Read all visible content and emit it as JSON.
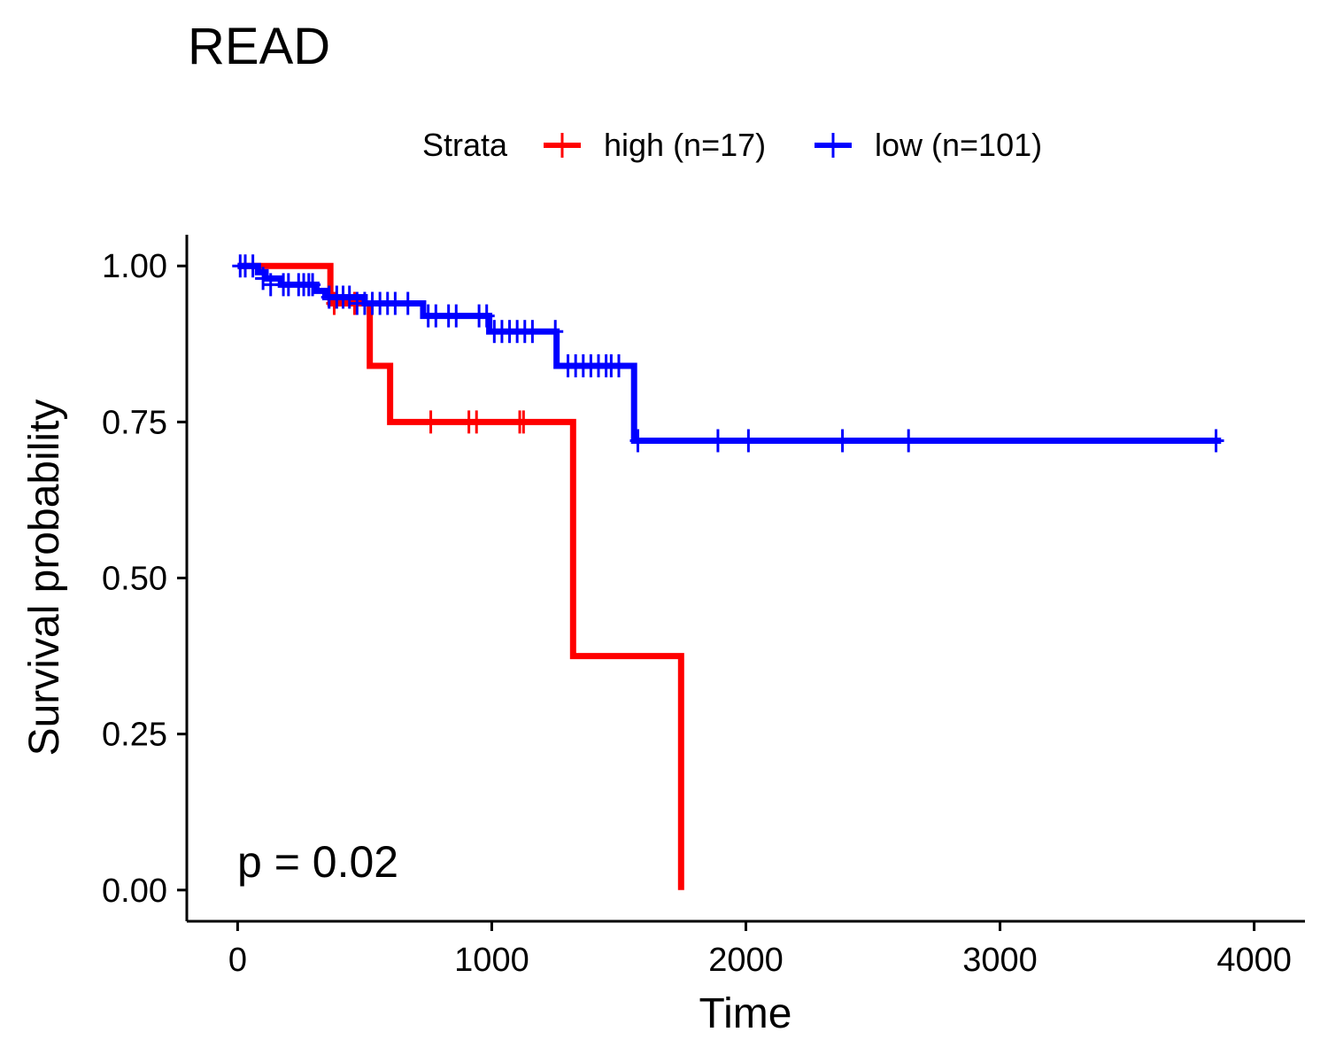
{
  "chart_data": {
    "type": "line",
    "title": "READ",
    "xlabel": "Time",
    "ylabel": "Survival probability",
    "xlim": [
      -200,
      4200
    ],
    "ylim": [
      -0.05,
      1.05
    ],
    "x_ticks": [
      "0",
      "1000",
      "2000",
      "3000",
      "4000"
    ],
    "y_ticks": [
      "0.00",
      "0.25",
      "0.50",
      "0.75",
      "1.00"
    ],
    "grid": false,
    "legend": {
      "title": "Strata",
      "position": "top"
    },
    "annotation": "p = 0.02",
    "series": [
      {
        "name": "high (n=17)",
        "color": "#ff0000",
        "steps": [
          [
            0,
            1.0
          ],
          [
            365,
            0.94
          ],
          [
            520,
            0.84
          ],
          [
            600,
            0.75
          ],
          [
            1320,
            0.375
          ],
          [
            1745,
            0.0
          ]
        ],
        "end_x": 1745,
        "censor": [
          [
            380,
            0.94
          ],
          [
            460,
            0.94
          ],
          [
            760,
            0.75
          ],
          [
            910,
            0.75
          ],
          [
            940,
            0.75
          ],
          [
            1110,
            0.75
          ],
          [
            1125,
            0.75
          ]
        ]
      },
      {
        "name": "low (n=101)",
        "color": "#0000ff",
        "steps": [
          [
            0,
            1.0
          ],
          [
            80,
            0.99
          ],
          [
            110,
            0.98
          ],
          [
            170,
            0.97
          ],
          [
            310,
            0.96
          ],
          [
            345,
            0.95
          ],
          [
            500,
            0.94
          ],
          [
            730,
            0.92
          ],
          [
            990,
            0.895
          ],
          [
            1255,
            0.84
          ],
          [
            1560,
            0.72
          ]
        ],
        "end_x": 3870,
        "censor": [
          [
            10,
            1.0
          ],
          [
            30,
            1.0
          ],
          [
            60,
            1.0
          ],
          [
            100,
            0.98
          ],
          [
            130,
            0.97
          ],
          [
            180,
            0.97
          ],
          [
            200,
            0.97
          ],
          [
            240,
            0.97
          ],
          [
            260,
            0.97
          ],
          [
            280,
            0.97
          ],
          [
            295,
            0.97
          ],
          [
            360,
            0.95
          ],
          [
            390,
            0.95
          ],
          [
            415,
            0.95
          ],
          [
            440,
            0.95
          ],
          [
            470,
            0.94
          ],
          [
            500,
            0.94
          ],
          [
            530,
            0.94
          ],
          [
            560,
            0.94
          ],
          [
            590,
            0.94
          ],
          [
            620,
            0.94
          ],
          [
            670,
            0.94
          ],
          [
            750,
            0.92
          ],
          [
            780,
            0.92
          ],
          [
            830,
            0.92
          ],
          [
            860,
            0.92
          ],
          [
            950,
            0.92
          ],
          [
            980,
            0.92
          ],
          [
            1010,
            0.895
          ],
          [
            1040,
            0.895
          ],
          [
            1070,
            0.895
          ],
          [
            1100,
            0.895
          ],
          [
            1130,
            0.895
          ],
          [
            1160,
            0.895
          ],
          [
            1250,
            0.895
          ],
          [
            1300,
            0.84
          ],
          [
            1330,
            0.84
          ],
          [
            1360,
            0.84
          ],
          [
            1390,
            0.84
          ],
          [
            1420,
            0.84
          ],
          [
            1450,
            0.84
          ],
          [
            1470,
            0.84
          ],
          [
            1500,
            0.84
          ],
          [
            1575,
            0.72
          ],
          [
            1890,
            0.72
          ],
          [
            2010,
            0.72
          ],
          [
            2380,
            0.72
          ],
          [
            2640,
            0.72
          ],
          [
            3850,
            0.72
          ]
        ]
      }
    ]
  }
}
